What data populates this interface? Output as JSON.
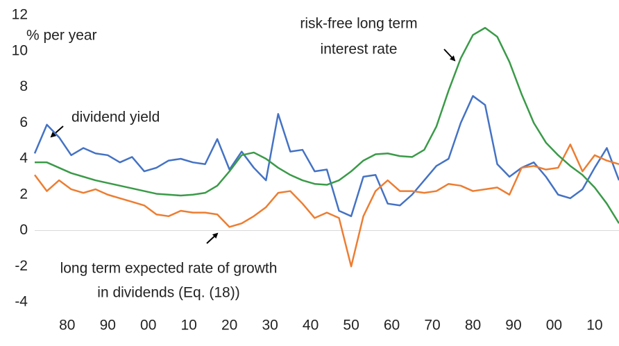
{
  "chart_data": {
    "type": "line",
    "x": [
      1872,
      1875,
      1878,
      1881,
      1884,
      1887,
      1890,
      1893,
      1896,
      1899,
      1902,
      1905,
      1908,
      1911,
      1914,
      1917,
      1920,
      1923,
      1926,
      1929,
      1932,
      1935,
      1938,
      1941,
      1944,
      1947,
      1950,
      1953,
      1956,
      1959,
      1962,
      1965,
      1968,
      1971,
      1974,
      1977,
      1980,
      1983,
      1986,
      1989,
      1992,
      1995,
      1998,
      2001,
      2004,
      2007,
      2010,
      2013,
      2016
    ],
    "series": [
      {
        "color": "#4472c4",
        "values": [
          4.3,
          5.9,
          5.2,
          4.2,
          4.6,
          4.3,
          4.2,
          3.8,
          4.1,
          3.3,
          3.5,
          3.9,
          4.0,
          3.8,
          3.7,
          5.1,
          3.4,
          4.4,
          3.5,
          2.8,
          6.5,
          4.4,
          4.5,
          3.3,
          3.4,
          1.1,
          0.8,
          3.0,
          3.1,
          1.5,
          1.4,
          2.0,
          2.8,
          3.6,
          4.0,
          6.0,
          7.5,
          7.0,
          3.7,
          3.0,
          3.5,
          3.8,
          3.0,
          2.0,
          1.8,
          2.3,
          3.5,
          4.6,
          2.8
        ]
      },
      {
        "color": "#ed7d31",
        "values": [
          3.1,
          2.2,
          2.8,
          2.3,
          2.1,
          2.3,
          2.0,
          1.8,
          1.6,
          1.4,
          0.9,
          0.8,
          1.1,
          1.0,
          1.0,
          0.9,
          0.2,
          0.4,
          0.8,
          1.3,
          2.1,
          2.2,
          1.5,
          0.7,
          1.0,
          0.7,
          -2.0,
          0.8,
          2.2,
          2.8,
          2.2,
          2.2,
          2.1,
          2.2,
          2.6,
          2.5,
          2.2,
          2.3,
          2.4,
          2.0,
          3.5,
          3.6,
          3.4,
          3.5,
          4.8,
          3.3,
          4.2,
          3.9,
          3.7
        ]
      },
      {
        "color": "#3a9a48",
        "values": [
          3.8,
          3.8,
          3.5,
          3.2,
          3.0,
          2.8,
          2.65,
          2.5,
          2.35,
          2.2,
          2.05,
          2.0,
          1.95,
          2.0,
          2.1,
          2.5,
          3.3,
          4.2,
          4.35,
          4.0,
          3.5,
          3.1,
          2.8,
          2.6,
          2.55,
          2.8,
          3.3,
          3.9,
          4.25,
          4.3,
          4.15,
          4.1,
          4.5,
          5.8,
          7.8,
          9.6,
          10.9,
          11.3,
          10.8,
          9.4,
          7.6,
          6.0,
          4.9,
          4.2,
          3.6,
          3.1,
          2.4,
          1.5,
          0.4
        ]
      }
    ],
    "xlim": [
      1872,
      2016
    ],
    "xticks": [
      {
        "value": 1880,
        "label": "80"
      },
      {
        "value": 1890,
        "label": "90"
      },
      {
        "value": 1900,
        "label": "00"
      },
      {
        "value": 1910,
        "label": "10"
      },
      {
        "value": 1920,
        "label": "20"
      },
      {
        "value": 1930,
        "label": "30"
      },
      {
        "value": 1940,
        "label": "40"
      },
      {
        "value": 1950,
        "label": "50"
      },
      {
        "value": 1960,
        "label": "60"
      },
      {
        "value": 1970,
        "label": "70"
      },
      {
        "value": 1980,
        "label": "80"
      },
      {
        "value": 1990,
        "label": "90"
      },
      {
        "value": 2000,
        "label": "00"
      },
      {
        "value": 2010,
        "label": "10"
      }
    ],
    "ylim": [
      -4,
      12
    ],
    "yticks": [
      -4,
      -2,
      0,
      2,
      4,
      6,
      8,
      10,
      12
    ],
    "annotations": [
      {
        "lines": [
          "% per year"
        ]
      },
      {
        "lines": [
          "risk-free long term",
          "interest rate"
        ]
      },
      {
        "lines": [
          "dividend yield"
        ]
      },
      {
        "lines": [
          "long term expected rate of growth",
          "in dividends (Eq. (18))"
        ]
      }
    ]
  }
}
